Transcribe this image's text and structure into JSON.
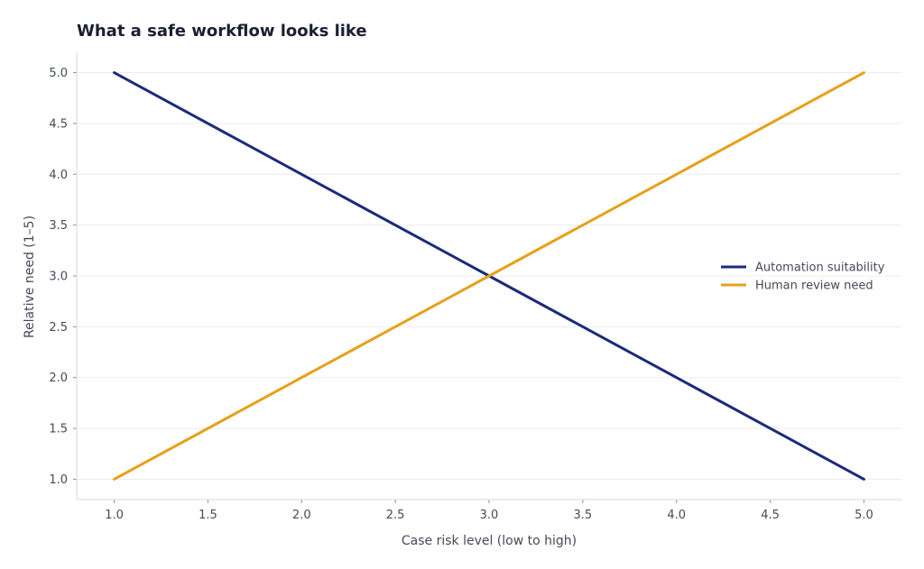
{
  "chart_data": {
    "type": "line",
    "title": "What a safe workflow looks like",
    "xlabel": "Case risk level (low to high)",
    "ylabel": "Relative need (1–5)",
    "xlim": [
      0.8,
      5.2
    ],
    "ylim": [
      0.8,
      5.2
    ],
    "x_ticks": [
      "1.0",
      "1.5",
      "2.0",
      "2.5",
      "3.0",
      "3.5",
      "4.0",
      "4.5",
      "5.0"
    ],
    "y_ticks": [
      "1.0",
      "1.5",
      "2.0",
      "2.5",
      "3.0",
      "3.5",
      "4.0",
      "4.5",
      "5.0"
    ],
    "grid": "horizontal",
    "legend_position": "center-right",
    "series": [
      {
        "name": "Automation suitability",
        "color": "#1c2a78",
        "x": [
          1,
          2,
          3,
          4,
          5
        ],
        "values": [
          5,
          4,
          3,
          2,
          1
        ]
      },
      {
        "name": "Human review need",
        "color": "#e6a01c",
        "x": [
          1,
          2,
          3,
          4,
          5
        ],
        "values": [
          1,
          2,
          3,
          4,
          5
        ]
      }
    ]
  }
}
